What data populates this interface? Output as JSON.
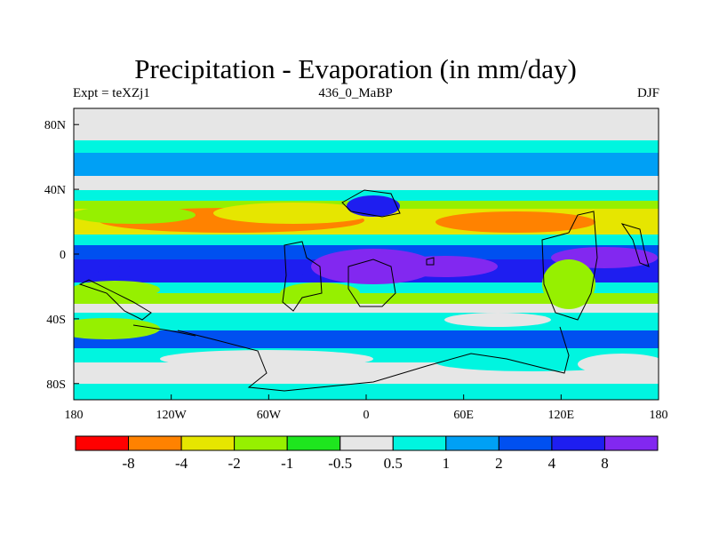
{
  "chart_data": {
    "type": "heatmap",
    "title": "Precipitation - Evaporation (in mm/day)",
    "left_label": "Expt = teXZj1",
    "center_label": "436_0_MaBP",
    "right_label": "DJF",
    "x_ticks": [
      "180",
      "120W",
      "60W",
      "0",
      "60E",
      "120E",
      "180"
    ],
    "y_ticks": [
      "80N",
      "40N",
      "0",
      "40S",
      "80S"
    ],
    "xlim": [
      -180,
      180
    ],
    "ylim": [
      -90,
      90
    ],
    "colorbar": {
      "colors": [
        "#ff0000",
        "#ff8200",
        "#e6e600",
        "#96f000",
        "#1ee61e",
        "#e6e6e6",
        "#00f5e0",
        "#00a0f5",
        "#0050f0",
        "#1e1ef0",
        "#8228f0"
      ],
      "labels": [
        "-8",
        "-4",
        "-2",
        "-1",
        "-0.5",
        "0.5",
        "1",
        "2",
        "4",
        "8"
      ]
    }
  }
}
